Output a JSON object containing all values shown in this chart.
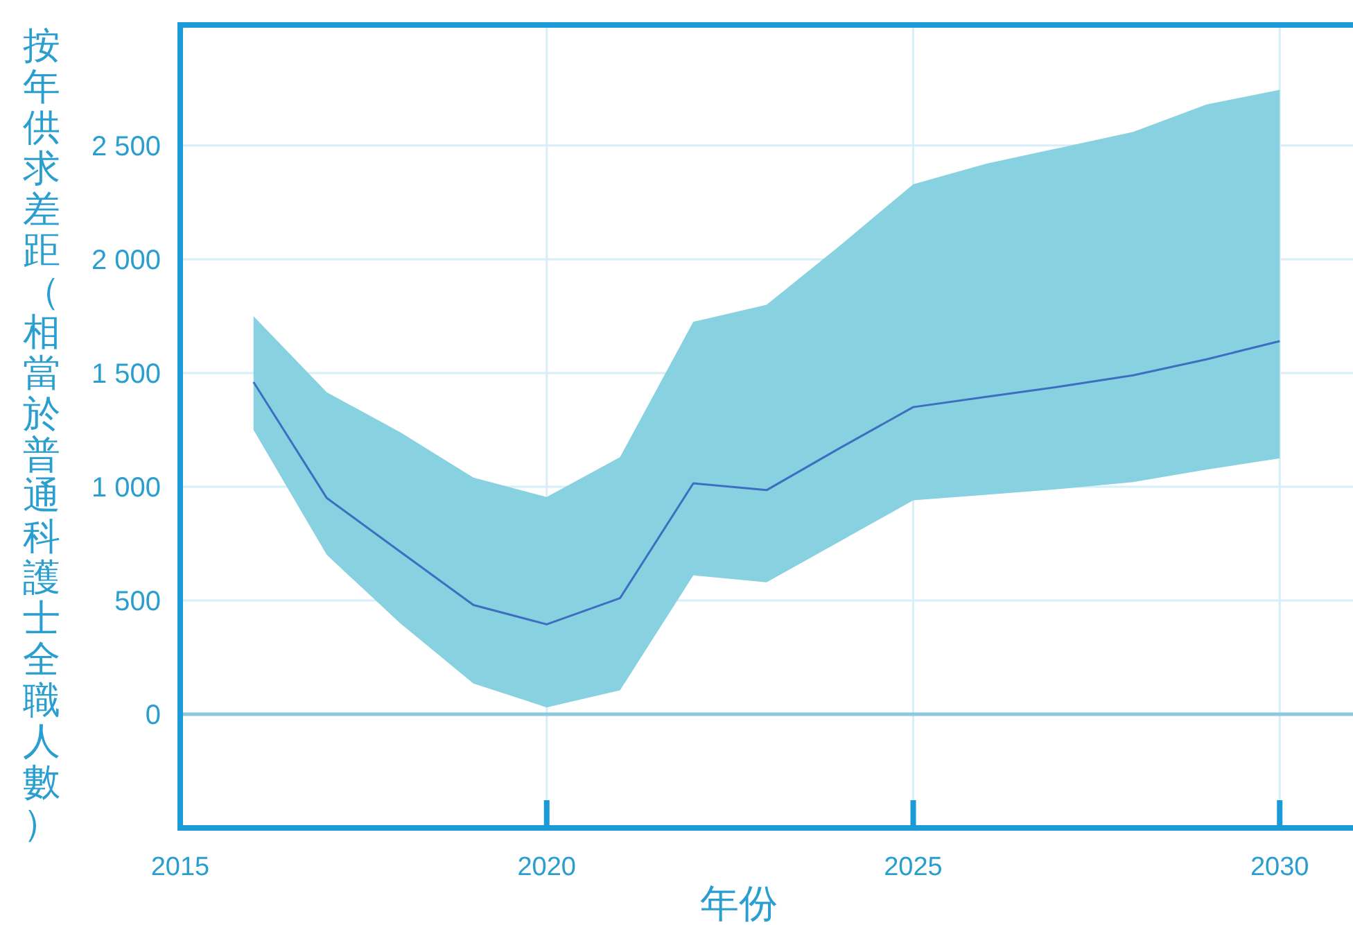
{
  "chart_data": {
    "type": "line",
    "xlabel": "年份",
    "ylabel": "按年供求差距（相當於普通科護士全職人數）",
    "xlim": [
      2015,
      2031
    ],
    "xticks": [
      2015,
      2020,
      2025,
      2030
    ],
    "ylim": [
      -500,
      3030
    ],
    "yticks": [
      0,
      500,
      {
        "value": 1000,
        "label": "1 000"
      },
      {
        "value": 1500,
        "label": "1 500"
      },
      {
        "value": 2000,
        "label": "2 000"
      },
      {
        "value": 2500,
        "label": "2 500"
      }
    ],
    "grid": true,
    "marker": "none",
    "line_style": "solid",
    "ref_lines": [
      {
        "axis": "y",
        "value": 0,
        "color": "#8cc8de"
      }
    ],
    "series": [
      {
        "color": "#3d6fc0",
        "x": [
          2016,
          2017,
          2018,
          2019,
          2020,
          2021,
          2022,
          2023,
          2024,
          2025,
          2026,
          2027,
          2028,
          2029,
          2030
        ],
        "values": [
          1460,
          950,
          715,
          480,
          395,
          510,
          1015,
          985,
          1170,
          1350,
          1395,
          1440,
          1490,
          1560,
          1640
        ],
        "upper": [
          1750,
          1415,
          1240,
          1040,
          955,
          1130,
          1725,
          1800,
          2060,
          2330,
          2420,
          2490,
          2560,
          2680,
          2745
        ],
        "lower": [
          1250,
          700,
          400,
          135,
          30,
          105,
          610,
          580,
          760,
          940,
          965,
          990,
          1020,
          1075,
          1125
        ]
      }
    ]
  }
}
